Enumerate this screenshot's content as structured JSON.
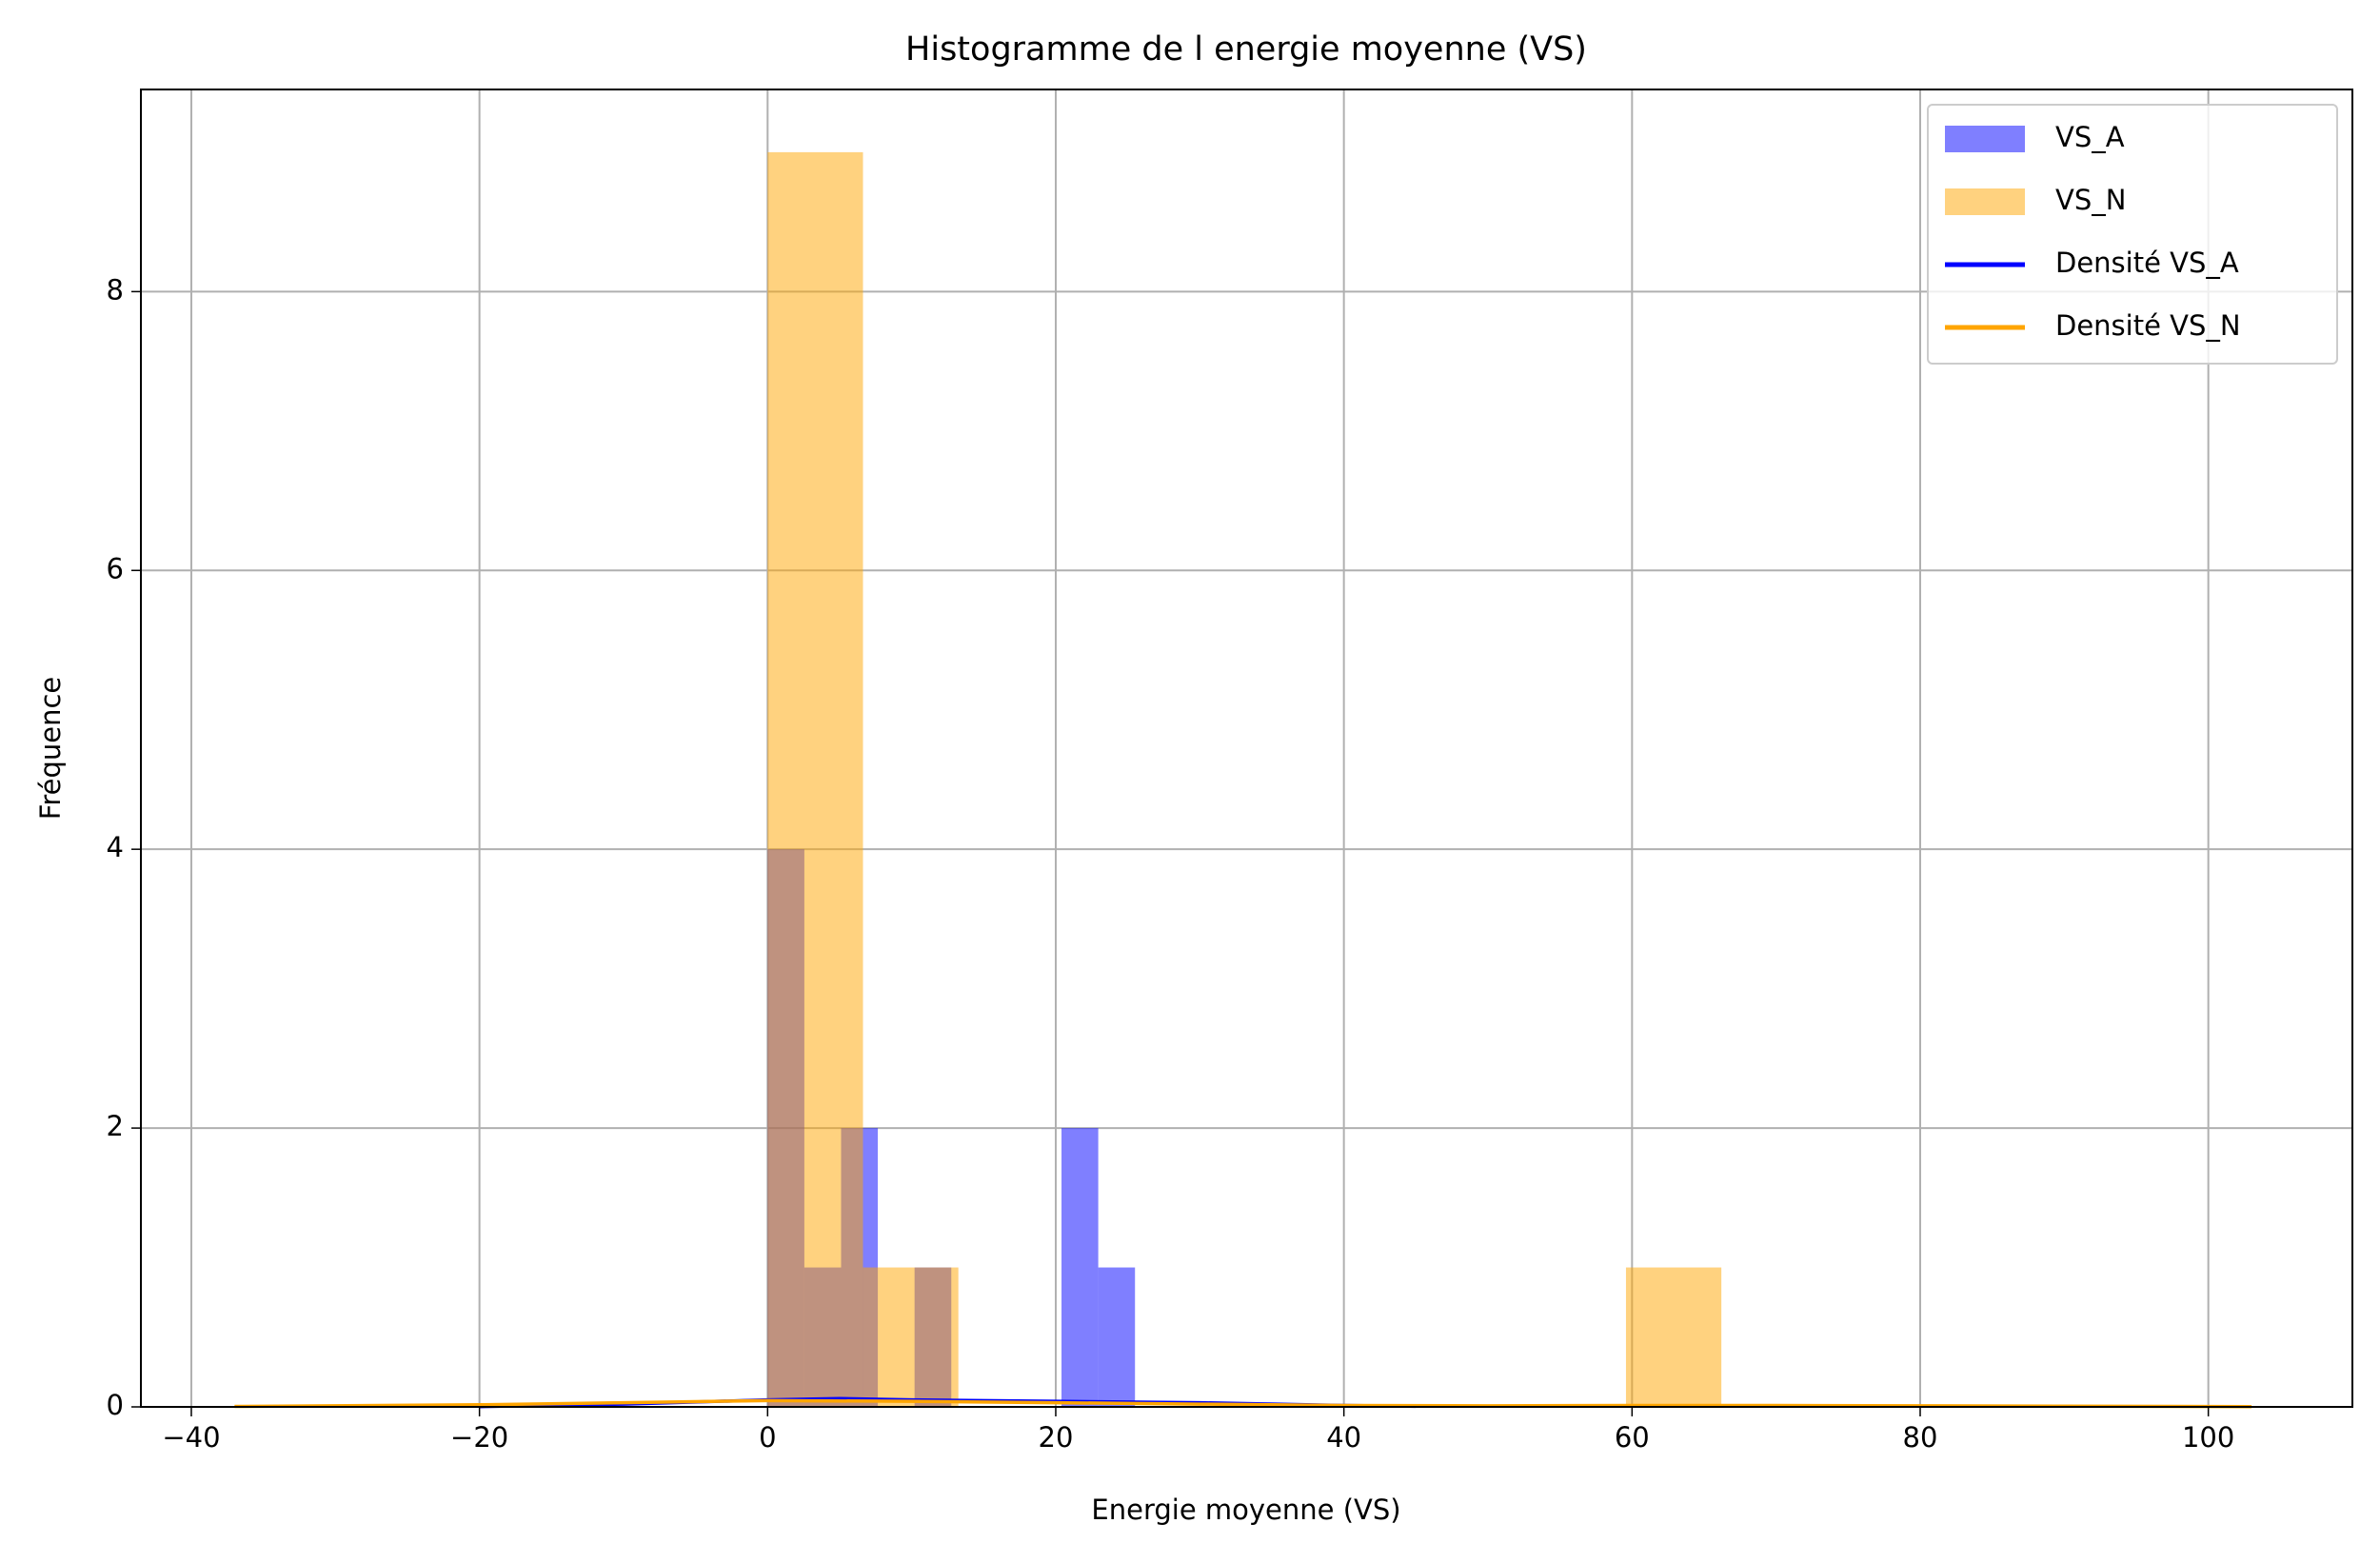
{
  "chart_data": {
    "type": "histogram",
    "title": "Histogramme de l energie moyenne (VS)",
    "x_label": "Energie moyenne (VS)",
    "y_label": "Fréquence",
    "xlim": [
      -43.5,
      110
    ],
    "ylim": [
      0,
      9.45
    ],
    "xticks": [
      {
        "value": -40,
        "label": "−40"
      },
      {
        "value": -20,
        "label": "−20"
      },
      0,
      20,
      40,
      60,
      80,
      100
    ],
    "yticks": [
      0,
      2,
      4,
      6,
      8
    ],
    "grid": true,
    "legend": "upper right",
    "series": [
      {
        "name": "VS_A",
        "color": "#0000ff",
        "opacity": 0.5,
        "bins": [
          0,
          2.55,
          5.1,
          7.65,
          10.2,
          12.75,
          15.3,
          17.85,
          20.4,
          22.95,
          25.5
        ],
        "values": [
          4,
          1,
          2,
          0,
          1,
          0,
          0,
          0,
          2,
          1
        ]
      },
      {
        "name": "VS_N",
        "color": "#ffa500",
        "opacity": 0.5,
        "bins": [
          0,
          6.62,
          13.24,
          19.86,
          26.48,
          33.1,
          39.72,
          46.34,
          52.96,
          59.58,
          66.2
        ],
        "values": [
          9,
          1,
          0,
          0,
          0,
          0,
          0,
          0,
          0,
          1
        ]
      }
    ],
    "density": [
      {
        "name": "Densité VS_A",
        "color": "#0000ff",
        "x": [
          -20,
          -10,
          0,
          5,
          10,
          20,
          30,
          40,
          45
        ],
        "values": [
          0.002,
          0.02,
          0.05,
          0.06,
          0.05,
          0.04,
          0.03,
          0.01,
          0.004
        ]
      },
      {
        "name": "Densité VS_N",
        "color": "#ffa500",
        "x": [
          -37,
          -20,
          -10,
          0,
          10,
          20,
          30,
          40,
          50,
          60,
          70,
          80,
          90,
          103
        ],
        "values": [
          0.003,
          0.015,
          0.03,
          0.045,
          0.04,
          0.03,
          0.02,
          0.01,
          0.008,
          0.01,
          0.01,
          0.008,
          0.005,
          0.002
        ]
      }
    ]
  }
}
